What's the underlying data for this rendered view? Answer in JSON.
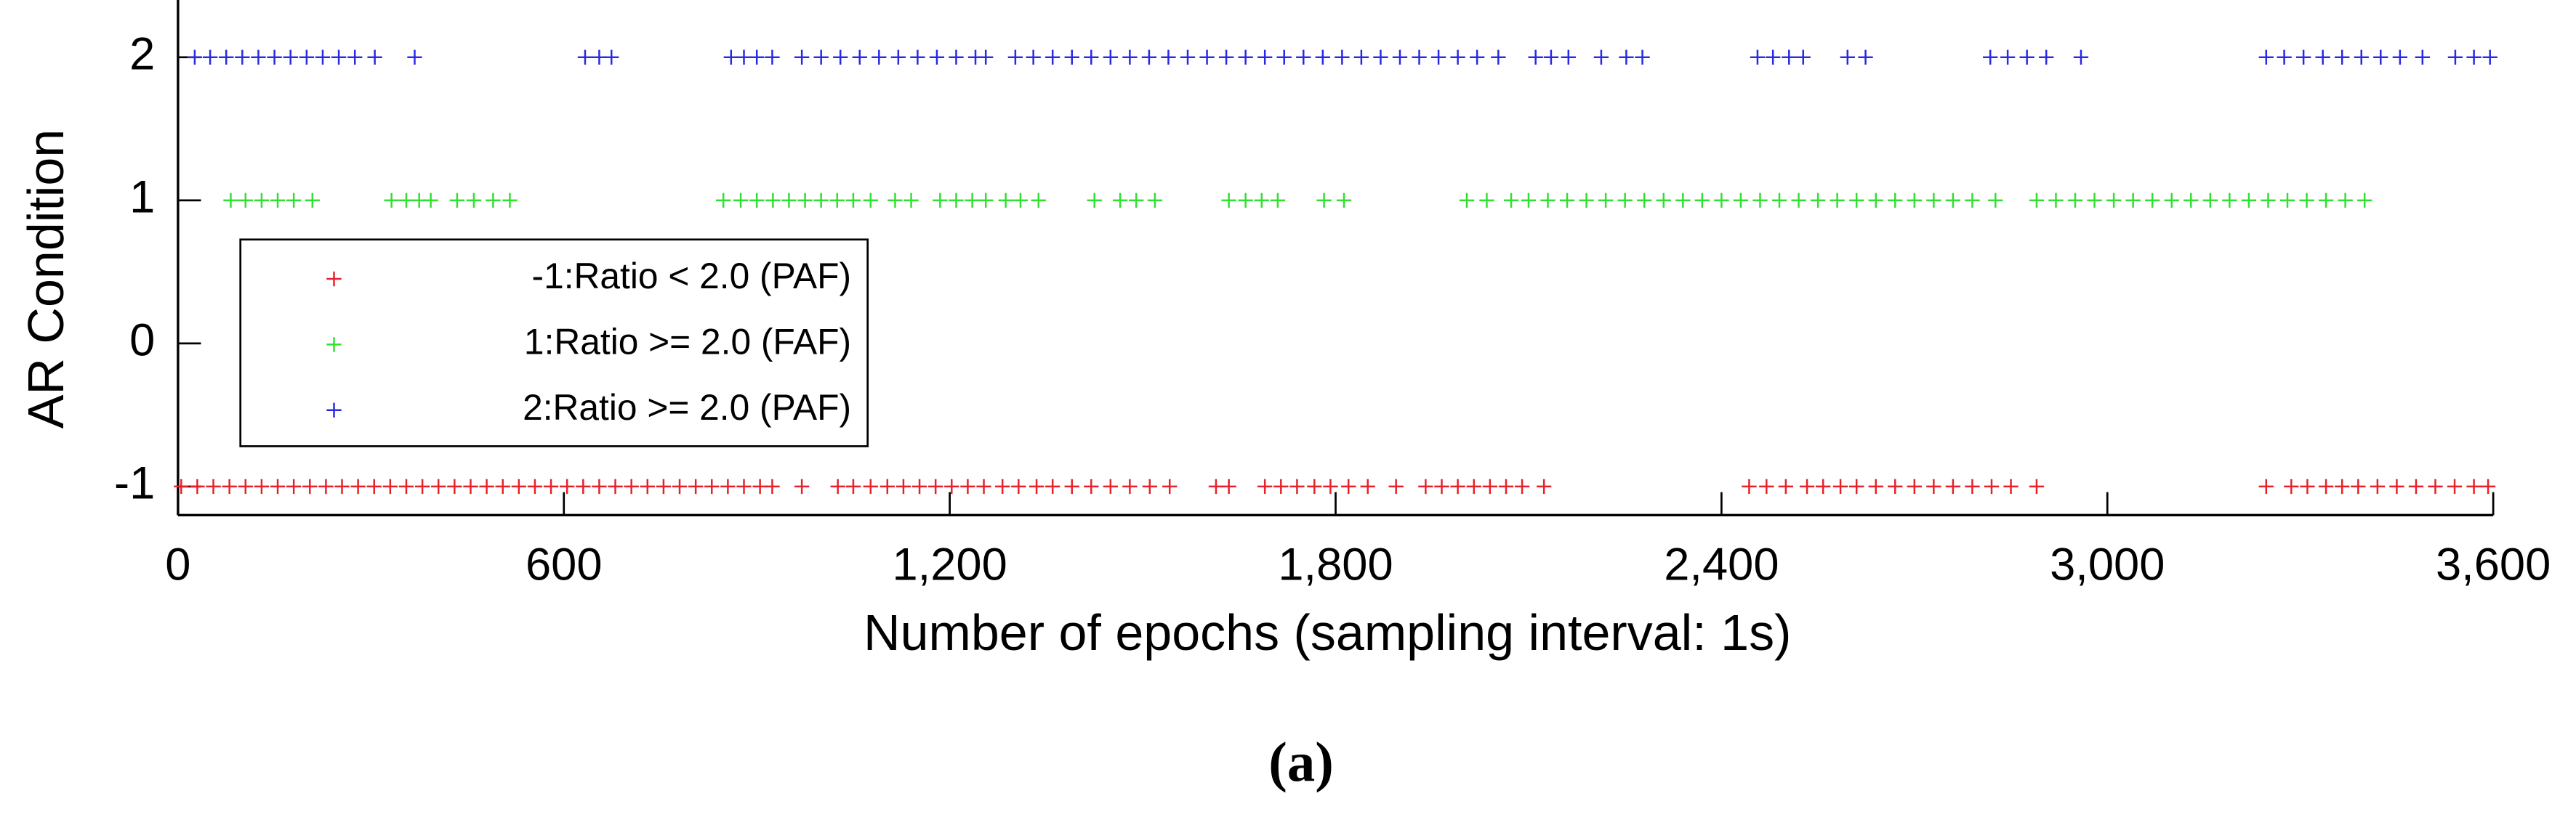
{
  "chart_data": {
    "type": "scatter",
    "xlabel": "Number of epochs (sampling interval: 1s)",
    "ylabel": "AR Condition",
    "caption": "(a)",
    "xlim": [
      0,
      3600
    ],
    "xticks": [
      0,
      600,
      {
        "value": 1200,
        "label": "1,200"
      },
      {
        "value": 1800,
        "label": "1,800"
      },
      {
        "value": 2400,
        "label": "2,400"
      },
      {
        "value": 3000,
        "label": "3,000"
      },
      {
        "value": 3600,
        "label": "3,600"
      }
    ],
    "ylim": [
      -1.2,
      2.4
    ],
    "yticks": [
      -1,
      0,
      1,
      2
    ],
    "marker": "+",
    "legend": "upper-left",
    "series": [
      {
        "name": "-1:Ratio < 2.0 (PAF)",
        "color": "#e8202a",
        "y": -1,
        "x": [
          5,
          30,
          55,
          80,
          105,
          130,
          155,
          180,
          205,
          230,
          255,
          280,
          305,
          330,
          355,
          380,
          405,
          430,
          455,
          480,
          505,
          530,
          555,
          580,
          605,
          630,
          655,
          680,
          705,
          730,
          755,
          780,
          805,
          830,
          855,
          880,
          905,
          924,
          970,
          1026,
          1050,
          1077,
          1103,
          1128,
          1153,
          1178,
          1203,
          1228,
          1253,
          1282,
          1307,
          1335,
          1360,
          1390,
          1420,
          1450,
          1480,
          1511,
          1542,
          1614,
          1634,
          1690,
          1715,
          1740,
          1767,
          1792,
          1820,
          1850,
          1894,
          1940,
          1965,
          1990,
          2015,
          2040,
          2065,
          2090,
          2124,
          2443,
          2470,
          2500,
          2533,
          2558,
          2585,
          2610,
          2640,
          2670,
          2700,
          2730,
          2760,
          2790,
          2820,
          2850,
          2890,
          3247,
          3286,
          3311,
          3340,
          3365,
          3390,
          3420,
          3450,
          3480,
          3510,
          3540,
          3570,
          3592
        ]
      },
      {
        "name": "1:Ratio >= 2.0 (FAF)",
        "color": "#30e030",
        "y": 1,
        "x": [
          82,
          105,
          130,
          155,
          180,
          209,
          332,
          355,
          375,
          393,
          434,
          460,
          490,
          516,
          848,
          875,
          900,
          925,
          950,
          975,
          1000,
          1025,
          1050,
          1077,
          1115,
          1140,
          1185,
          1210,
          1235,
          1256,
          1287,
          1310,
          1338,
          1425,
          1465,
          1490,
          1519,
          1634,
          1660,
          1685,
          1710,
          1782,
          1813,
          2004,
          2035,
          2073,
          2100,
          2130,
          2160,
          2190,
          2220,
          2250,
          2280,
          2310,
          2340,
          2370,
          2400,
          2430,
          2460,
          2490,
          2520,
          2550,
          2580,
          2610,
          2640,
          2670,
          2700,
          2730,
          2760,
          2790,
          2826,
          2890,
          2920,
          2950,
          2980,
          3010,
          3040,
          3070,
          3100,
          3130,
          3160,
          3190,
          3220,
          3250,
          3280,
          3310,
          3340,
          3370,
          3400
        ]
      },
      {
        "name": "2:Ratio >= 2.0 (PAF)",
        "color": "#2828e8",
        "y": 2,
        "x": [
          26,
          50,
          75,
          100,
          125,
          150,
          175,
          200,
          225,
          250,
          275,
          306,
          368,
          633,
          655,
          674,
          860,
          880,
          900,
          924,
          970,
          1000,
          1030,
          1060,
          1090,
          1120,
          1150,
          1180,
          1210,
          1240,
          1256,
          1302,
          1330,
          1360,
          1390,
          1420,
          1450,
          1480,
          1510,
          1540,
          1570,
          1600,
          1630,
          1660,
          1690,
          1720,
          1750,
          1780,
          1810,
          1840,
          1870,
          1900,
          1930,
          1960,
          1990,
          2020,
          2053,
          2111,
          2135,
          2162,
          2213,
          2252,
          2277,
          2456,
          2480,
          2505,
          2527,
          2596,
          2624,
          2818,
          2845,
          2875,
          2905,
          2959,
          3247,
          3275,
          3305,
          3335,
          3365,
          3395,
          3425,
          3455,
          3490,
          3541,
          3570,
          3595
        ]
      }
    ]
  }
}
